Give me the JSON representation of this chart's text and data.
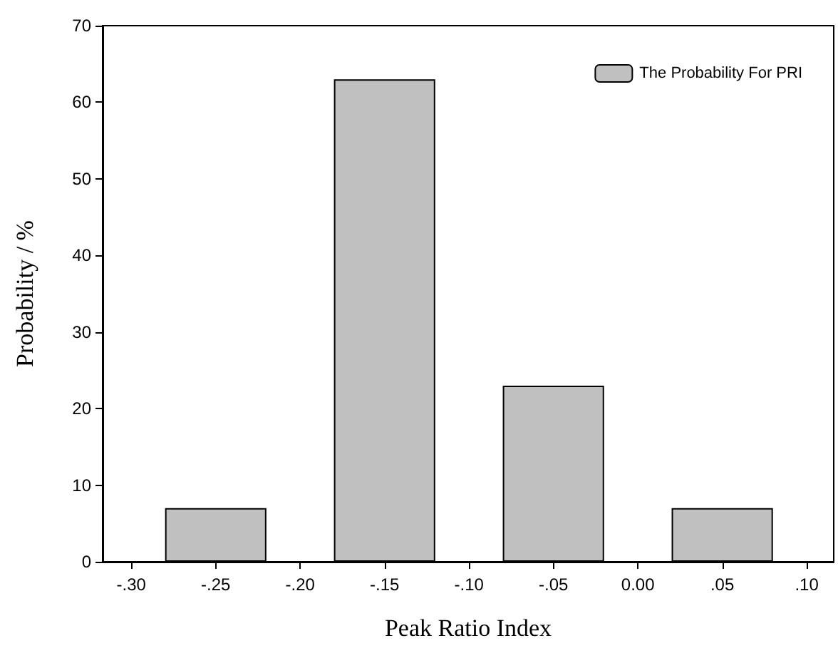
{
  "chart_data": {
    "type": "bar",
    "xlabel": "Peak Ratio Index",
    "ylabel": "Probability / %",
    "x": [
      -0.25,
      -0.15,
      -0.05,
      0.05
    ],
    "series": [
      {
        "name": "The Probability For PRI",
        "color": "#c0c0c0",
        "values": [
          7,
          63,
          23,
          7
        ]
      }
    ],
    "xlim": [
      -0.317,
      0.116
    ],
    "xticks": [
      {
        "value": -0.3,
        "label": "-.30"
      },
      {
        "value": -0.25,
        "label": "-.25"
      },
      {
        "value": -0.2,
        "label": "-.20"
      },
      {
        "value": -0.15,
        "label": "-.15"
      },
      {
        "value": -0.1,
        "label": "-.10"
      },
      {
        "value": -0.05,
        "label": "-.05"
      },
      {
        "value": 0,
        "label": "0.00"
      },
      {
        "value": 0.05,
        "label": ".05"
      },
      {
        "value": 0.1,
        "label": ".10"
      }
    ],
    "ylim": [
      0,
      70
    ],
    "yticks": [
      0,
      10,
      20,
      30,
      40,
      50,
      60,
      70
    ],
    "grid": false,
    "legend": "top right"
  }
}
